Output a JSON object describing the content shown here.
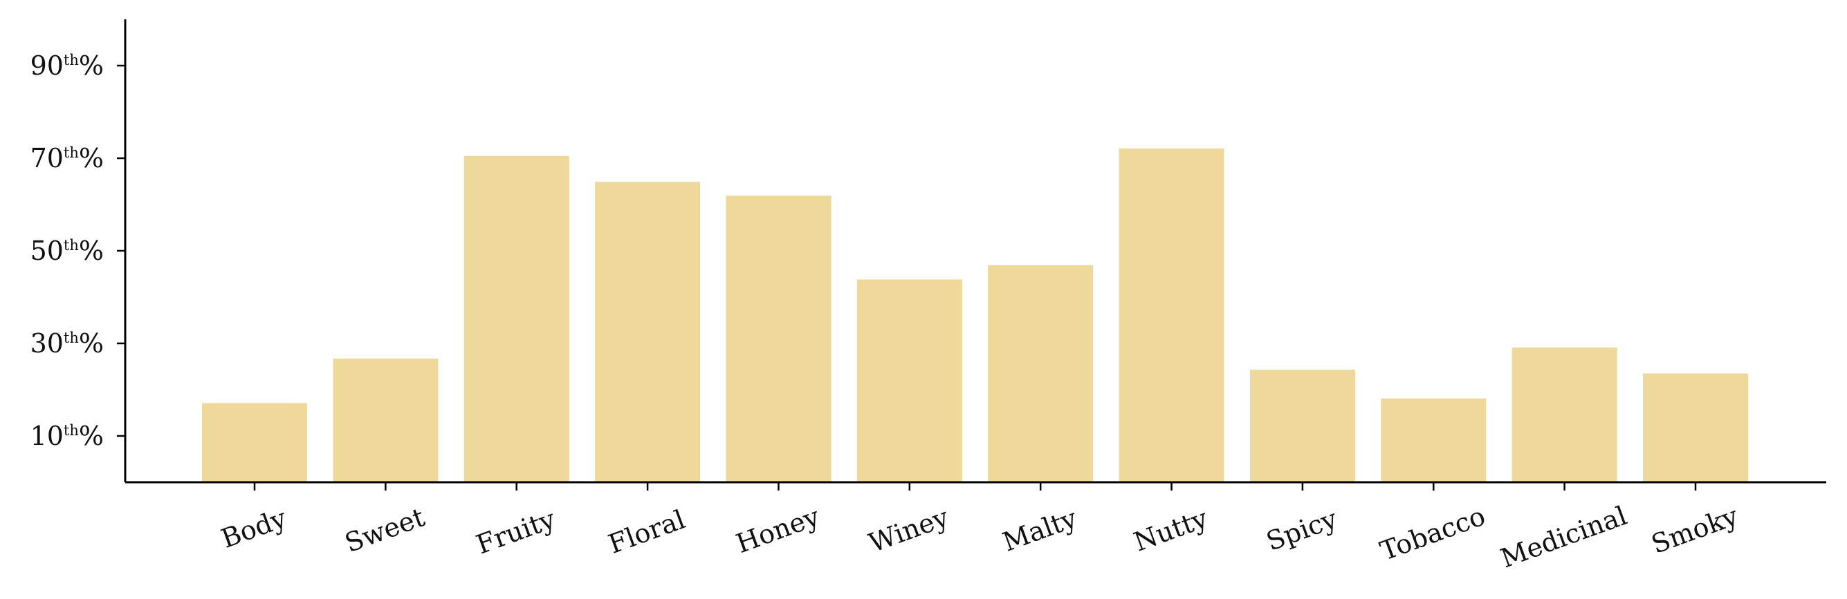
{
  "chart_data": {
    "type": "bar",
    "categories": [
      "Body",
      "Sweet",
      "Fruity",
      "Floral",
      "Honey",
      "Winey",
      "Malty",
      "Nutty",
      "Spicy",
      "Tobacco",
      "Medicinal",
      "Smoky"
    ],
    "values": [
      17.1,
      26.7,
      70.5,
      64.9,
      61.9,
      43.8,
      46.9,
      72.1,
      24.3,
      18.1,
      29.1,
      23.5
    ],
    "ylim": [
      0,
      100
    ],
    "yticks": [
      10,
      30,
      50,
      70,
      90
    ],
    "ytick_labels": [
      {
        "number": "10",
        "sup": "th",
        "suffix": "%"
      },
      {
        "number": "30",
        "sup": "th",
        "suffix": "%"
      },
      {
        "number": "50",
        "sup": "th",
        "suffix": "%"
      },
      {
        "number": "70",
        "sup": "th",
        "suffix": "%"
      },
      {
        "number": "90",
        "sup": "th",
        "suffix": "%"
      }
    ],
    "bar_color": "#eed89a",
    "axis_color": "#000000",
    "grid": false,
    "title": "",
    "xlabel": "",
    "ylabel": ""
  }
}
